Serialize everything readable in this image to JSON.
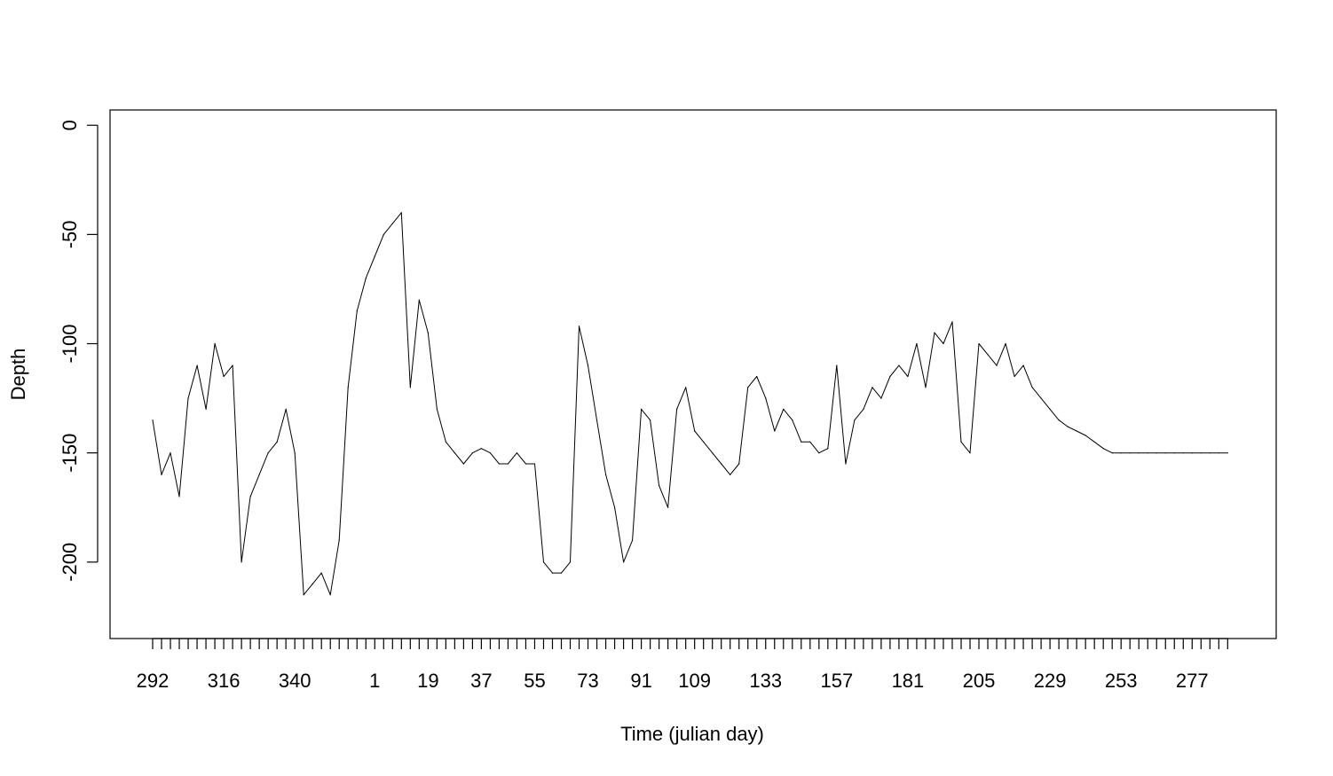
{
  "chart_data": {
    "type": "line",
    "xlabel": "Time (julian day)",
    "ylabel": "Depth",
    "ylim": [
      -235,
      7
    ],
    "y_ticks": [
      0,
      -50,
      -100,
      -150,
      -200
    ],
    "x_tick_labels": [
      "292",
      "316",
      "340",
      "1",
      "19",
      "37",
      "55",
      "73",
      "91",
      "109",
      "133",
      "157",
      "181",
      "205",
      "229",
      "253",
      "277"
    ],
    "x_tick_every_days": 3,
    "x_days": 365,
    "x_label_days": [
      0,
      24,
      48,
      75,
      93,
      111,
      129,
      147,
      165,
      183,
      207,
      231,
      255,
      279,
      303,
      327,
      351
    ],
    "series": [
      {
        "x": [
          0,
          3,
          6,
          9,
          12,
          15,
          18,
          21,
          24,
          27,
          30,
          33,
          36,
          39,
          42,
          45,
          48,
          51,
          54,
          57,
          60,
          63,
          66,
          69,
          72,
          75,
          78,
          81,
          84,
          87,
          90,
          93,
          96,
          99,
          102,
          105,
          108,
          111,
          114,
          117,
          120,
          123,
          126,
          129,
          132,
          135,
          138,
          141,
          144,
          147,
          150,
          153,
          156,
          159,
          162,
          165,
          168,
          171,
          174,
          177,
          180,
          183,
          186,
          189,
          192,
          195,
          198,
          201,
          204,
          207,
          210,
          213,
          216,
          219,
          222,
          225,
          228,
          231,
          234,
          237,
          240,
          243,
          246,
          249,
          252,
          255,
          258,
          261,
          264,
          267,
          270,
          273,
          276,
          279,
          282,
          285,
          288,
          291,
          294,
          297,
          300,
          303,
          306,
          309,
          312,
          315,
          318,
          321,
          324,
          327,
          330,
          333,
          336,
          339,
          342,
          345,
          348,
          351,
          354,
          357,
          360,
          363
        ],
        "y": [
          -135,
          -160,
          -150,
          -170,
          -125,
          -110,
          -130,
          -100,
          -115,
          -110,
          -200,
          -170,
          -160,
          -150,
          -145,
          -130,
          -150,
          -215,
          -210,
          -205,
          -215,
          -190,
          -120,
          -85,
          -70,
          -60,
          -50,
          -45,
          -40,
          -120,
          -80,
          -95,
          -130,
          -145,
          -150,
          -155,
          -150,
          -148,
          -150,
          -155,
          -155,
          -150,
          -155,
          -155,
          -200,
          -205,
          -205,
          -200,
          -92,
          -110,
          -135,
          -160,
          -175,
          -200,
          -190,
          -130,
          -135,
          -165,
          -175,
          -130,
          -120,
          -140,
          -145,
          -150,
          -155,
          -160,
          -155,
          -120,
          -115,
          -125,
          -140,
          -130,
          -135,
          -145,
          -145,
          -150,
          -148,
          -110,
          -155,
          -135,
          -130,
          -120,
          -125,
          -115,
          -110,
          -115,
          -100,
          -120,
          -95,
          -100,
          -90,
          -145,
          -150,
          -100,
          -105,
          -110,
          -100,
          -115,
          -110,
          -120,
          -125,
          -130,
          -135,
          -138,
          -140,
          -142,
          -145,
          -148,
          -150,
          -150,
          -150,
          -150,
          -150,
          -150,
          -150,
          -150,
          -150,
          -150,
          -150,
          -150,
          -150,
          -150
        ]
      }
    ]
  }
}
